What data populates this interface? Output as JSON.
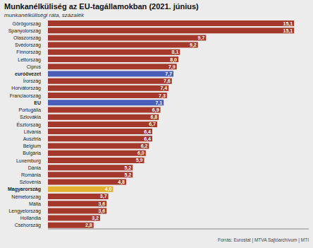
{
  "chart_data": {
    "type": "bar",
    "orientation": "horizontal",
    "title": "Munkanélküliség az EU-tagállamokban (2021. június)",
    "subtitle": "munkanélküliségi ráta, százalék",
    "source": "Forrás: Eurostat | MTVA Sajtóarchívum | MTI",
    "categories": [
      "Görögország",
      "Spanyolország",
      "Olaszország",
      "Svédország",
      "Finnország",
      "Lettország",
      "Ciprus",
      "euróövezet",
      "Írország",
      "Horvátország",
      "Franciaország",
      "EU",
      "Portugália",
      "Szlovákia",
      "Észtország",
      "Litvánia",
      "Ausztria",
      "Belgium",
      "Bulgária",
      "Luxemburg",
      "Dánia",
      "Románia",
      "Szlovénia",
      "Magyarország",
      "Németország",
      "Málta",
      "Lengyelország",
      "Hollandia",
      "Csehország"
    ],
    "values": [
      15.1,
      15.1,
      9.7,
      9.2,
      8.1,
      8.0,
      7.9,
      7.7,
      7.6,
      7.4,
      7.3,
      7.1,
      6.9,
      6.8,
      6.7,
      6.4,
      6.4,
      6.2,
      6.0,
      5.9,
      5.2,
      5.2,
      4.8,
      4.0,
      3.7,
      3.6,
      3.6,
      3.2,
      2.8
    ],
    "value_labels": [
      "15,1",
      "15,1",
      "9,7",
      "9,2",
      "8,1",
      "8,0",
      "7,9",
      "7,7",
      "7,6",
      "7,4",
      "7,3",
      "7,1",
      "6,9",
      "6,8",
      "6,7",
      "6,4",
      "6,4",
      "6,2",
      "6,0",
      "5,9",
      "5,2",
      "5,2",
      "4,8",
      "4,0",
      "3,7",
      "3,6",
      "3,6",
      "3,2",
      "2,8"
    ],
    "color": "#a3382b",
    "colors": [
      "#a3382b",
      "#a3382b",
      "#a3382b",
      "#a3382b",
      "#a3382b",
      "#a3382b",
      "#a3382b",
      "#4a5db8",
      "#a3382b",
      "#a3382b",
      "#a3382b",
      "#4a5db8",
      "#a3382b",
      "#a3382b",
      "#a3382b",
      "#a3382b",
      "#a3382b",
      "#a3382b",
      "#a3382b",
      "#a3382b",
      "#a3382b",
      "#a3382b",
      "#a3382b",
      "#e3b22e",
      "#a3382b",
      "#a3382b",
      "#a3382b",
      "#a3382b",
      "#a3382b"
    ],
    "xlim": [
      0,
      16
    ],
    "data_labels": true,
    "tick_labels": "y",
    "grid": false
  }
}
